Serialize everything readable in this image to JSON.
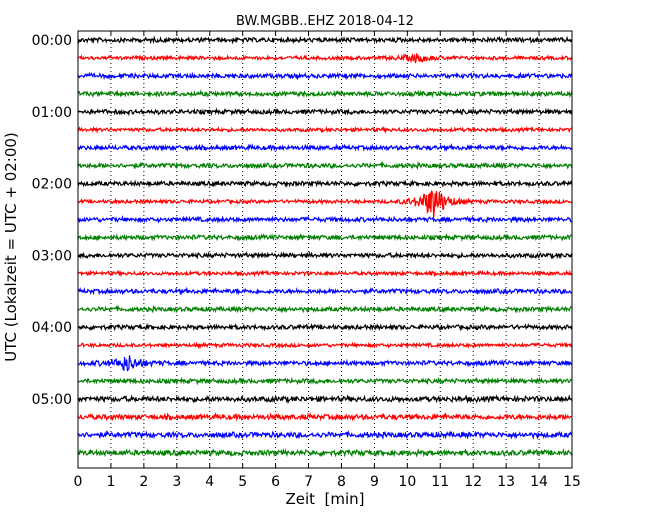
{
  "chart_data": {
    "type": "line",
    "title": "BW.MGBB..EHZ 2018-04-12",
    "xlabel": "Zeit  [min]",
    "ylabel": "UTC (Lokalzeit = UTC + 02:00)",
    "xlim": [
      0,
      15
    ],
    "x_ticks": [
      "0",
      "1",
      "2",
      "3",
      "4",
      "5",
      "6",
      "7",
      "8",
      "9",
      "10",
      "11",
      "12",
      "13",
      "14",
      "15"
    ],
    "y_ticks": [
      "00:00",
      "01:00",
      "02:00",
      "03:00",
      "04:00",
      "05:00"
    ],
    "grid": "vertical dotted",
    "trace_colors": [
      "#000000",
      "#ff0000",
      "#0000ff",
      "#008000"
    ],
    "traces": [
      {
        "start": "00:00",
        "amplitude": 2.5
      },
      {
        "start": "00:15",
        "amplitude": 2.0,
        "events": [
          {
            "minute": 10.3,
            "amplitude": 4
          }
        ]
      },
      {
        "start": "00:30",
        "amplitude": 2.5
      },
      {
        "start": "00:45",
        "amplitude": 2.5
      },
      {
        "start": "01:00",
        "amplitude": 2.5
      },
      {
        "start": "01:15",
        "amplitude": 2.0
      },
      {
        "start": "01:30",
        "amplitude": 2.5
      },
      {
        "start": "01:45",
        "amplitude": 2.5
      },
      {
        "start": "02:00",
        "amplitude": 2.5
      },
      {
        "start": "02:15",
        "amplitude": 2.0,
        "events": [
          {
            "minute": 10.8,
            "amplitude": 18
          }
        ]
      },
      {
        "start": "02:30",
        "amplitude": 2.5
      },
      {
        "start": "02:45",
        "amplitude": 2.5
      },
      {
        "start": "03:00",
        "amplitude": 2.5
      },
      {
        "start": "03:15",
        "amplitude": 2.0
      },
      {
        "start": "03:30",
        "amplitude": 2.5
      },
      {
        "start": "03:45",
        "amplitude": 2.5
      },
      {
        "start": "04:00",
        "amplitude": 2.5
      },
      {
        "start": "04:15",
        "amplitude": 2.0
      },
      {
        "start": "04:30",
        "amplitude": 2.5,
        "events": [
          {
            "minute": 1.5,
            "amplitude": 8
          }
        ]
      },
      {
        "start": "04:45",
        "amplitude": 2.5
      },
      {
        "start": "05:00",
        "amplitude": 3.0
      },
      {
        "start": "05:15",
        "amplitude": 3.0
      },
      {
        "start": "05:30",
        "amplitude": 3.0
      },
      {
        "start": "05:45",
        "amplitude": 3.0
      }
    ]
  }
}
